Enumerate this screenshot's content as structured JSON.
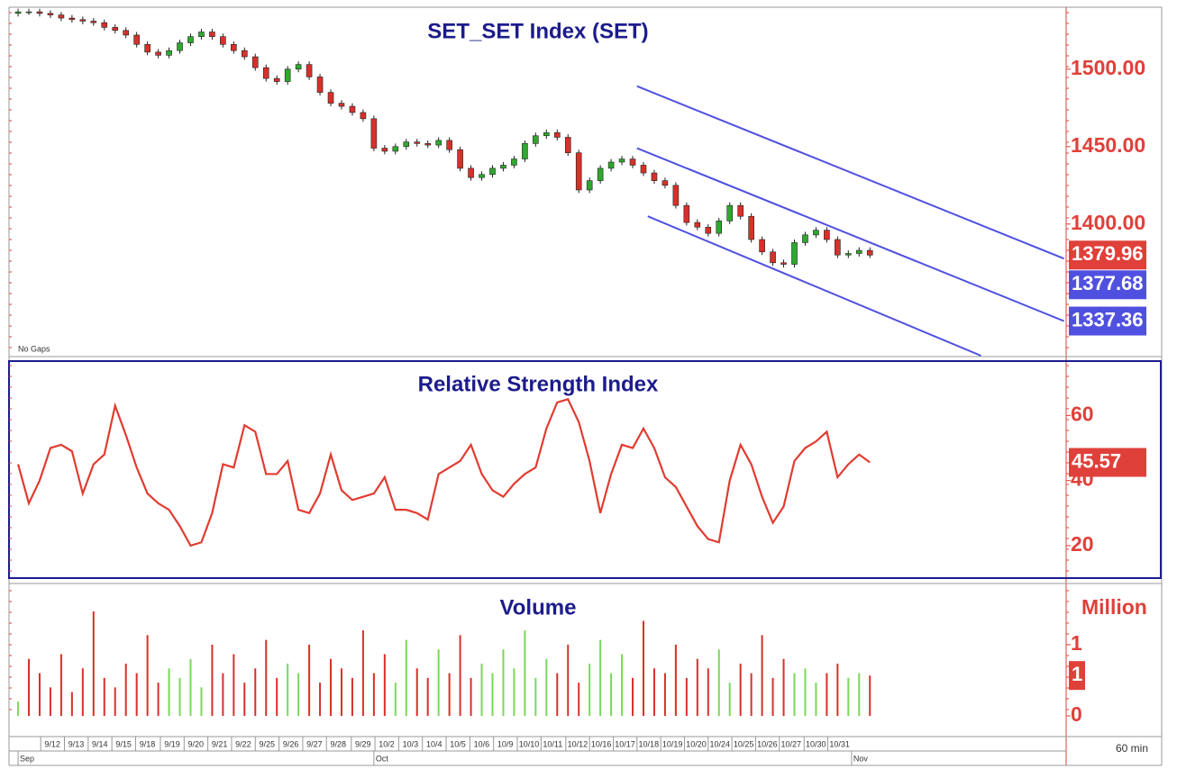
{
  "chart_data": [
    {
      "type": "candlestick",
      "title": "SET_SET  Index  (SET)",
      "note": "No Gaps",
      "open": [
        1536,
        1537,
        1537,
        1536,
        1535,
        1533,
        1532,
        1531,
        1530,
        1527,
        1525,
        1522,
        1516,
        1511,
        1509,
        1512,
        1517,
        1521,
        1524,
        1521,
        1516,
        1512,
        1508,
        1501,
        1494,
        1492,
        1500,
        1503,
        1495,
        1485,
        1478,
        1476,
        1472,
        1468,
        1449,
        1447,
        1450,
        1453,
        1452,
        1451,
        1454,
        1448,
        1436,
        1430,
        1432,
        1436,
        1438,
        1442,
        1452,
        1457,
        1459,
        1456,
        1446,
        1422,
        1428,
        1436,
        1440,
        1442,
        1438,
        1433,
        1428,
        1425,
        1412,
        1401,
        1398,
        1394,
        1402,
        1412,
        1405,
        1390,
        1382,
        1375,
        1374,
        1388,
        1393,
        1396,
        1390,
        1380,
        1381,
        1383
      ],
      "high": [
        1539,
        1539,
        1539,
        1538,
        1537,
        1535,
        1534,
        1533,
        1532,
        1529,
        1527,
        1524,
        1518,
        1513,
        1514,
        1519,
        1523,
        1526,
        1526,
        1523,
        1518,
        1514,
        1510,
        1503,
        1496,
        1502,
        1505,
        1505,
        1497,
        1487,
        1480,
        1478,
        1474,
        1470,
        1451,
        1452,
        1455,
        1455,
        1454,
        1456,
        1456,
        1450,
        1438,
        1434,
        1438,
        1440,
        1444,
        1454,
        1459,
        1461,
        1461,
        1458,
        1448,
        1430,
        1438,
        1442,
        1444,
        1444,
        1440,
        1435,
        1430,
        1427,
        1414,
        1403,
        1400,
        1404,
        1414,
        1414,
        1407,
        1392,
        1384,
        1377,
        1390,
        1395,
        1398,
        1398,
        1392,
        1383,
        1385,
        1385
      ],
      "low": [
        1534,
        1535,
        1534,
        1533,
        1531,
        1530,
        1529,
        1528,
        1525,
        1523,
        1520,
        1514,
        1509,
        1507,
        1507,
        1510,
        1515,
        1519,
        1519,
        1514,
        1510,
        1506,
        1499,
        1492,
        1490,
        1490,
        1498,
        1493,
        1483,
        1476,
        1474,
        1470,
        1466,
        1447,
        1445,
        1445,
        1448,
        1450,
        1449,
        1449,
        1446,
        1434,
        1428,
        1428,
        1430,
        1434,
        1436,
        1440,
        1450,
        1455,
        1454,
        1444,
        1420,
        1420,
        1426,
        1434,
        1438,
        1436,
        1431,
        1426,
        1423,
        1410,
        1399,
        1396,
        1392,
        1392,
        1400,
        1403,
        1388,
        1380,
        1373,
        1372,
        1372,
        1386,
        1391,
        1388,
        1378,
        1378,
        1379,
        1378
      ],
      "close": [
        1537,
        1537,
        1536,
        1535,
        1533,
        1532,
        1531,
        1530,
        1527,
        1525,
        1522,
        1516,
        1511,
        1509,
        1512,
        1517,
        1521,
        1524,
        1521,
        1516,
        1512,
        1508,
        1501,
        1494,
        1492,
        1500,
        1503,
        1495,
        1485,
        1478,
        1476,
        1472,
        1468,
        1449,
        1447,
        1450,
        1453,
        1452,
        1451,
        1454,
        1448,
        1436,
        1430,
        1432,
        1436,
        1438,
        1442,
        1452,
        1457,
        1459,
        1456,
        1446,
        1422,
        1428,
        1436,
        1440,
        1442,
        1438,
        1433,
        1428,
        1425,
        1412,
        1401,
        1398,
        1394,
        1402,
        1412,
        1405,
        1390,
        1382,
        1375,
        1374,
        1388,
        1393,
        1396,
        1390,
        1380,
        1381,
        1383,
        1379.96
      ],
      "up_color": "#2ea82e",
      "down_color": "#d8302a",
      "ylim": [
        1315,
        1540
      ],
      "yticks": [
        {
          "value": 1400,
          "label": "1400.00"
        },
        {
          "value": 1450,
          "label": "1450.00"
        },
        {
          "value": 1500,
          "label": "1500.00"
        }
      ],
      "lines": [
        {
          "color": "#5050e0",
          "x": [
            57.4,
            97.0
          ],
          "values": [
            1489,
            1377.68
          ]
        },
        {
          "color": "#5050e0",
          "x": [
            57.4,
            97.0
          ],
          "values": [
            1449,
            1337.36
          ]
        },
        {
          "color": "#5050e0",
          "x": [
            58.4,
            89.3
          ],
          "values": [
            1405,
            1315
          ]
        }
      ]
    },
    {
      "type": "line",
      "title": "Relative  Strength  Index",
      "color": "#e03c31",
      "values": [
        45,
        33,
        40,
        50,
        51,
        49,
        36,
        45,
        48,
        63,
        54,
        44,
        36,
        33,
        31,
        26,
        20,
        21,
        30,
        45,
        44,
        57,
        55,
        42,
        42,
        46,
        31,
        30,
        36,
        48,
        37,
        34,
        35,
        36,
        41,
        31,
        31,
        30,
        28,
        42,
        44,
        46,
        51,
        42,
        37,
        35,
        39,
        42,
        44,
        56,
        64,
        65,
        58,
        46,
        30,
        42,
        51,
        50,
        56,
        50,
        41,
        38,
        32,
        26,
        22,
        21,
        40,
        51,
        45,
        35,
        27,
        32,
        46,
        50,
        52,
        55,
        41,
        45,
        48,
        45.57
      ],
      "ylim": [
        10,
        77
      ],
      "yticks": [
        20,
        40,
        60
      ]
    },
    {
      "type": "bar",
      "title": "Volume",
      "unit_label": "Million",
      "color": "#d8302a",
      "up_color": "#7ad85a",
      "values": [
        0.3,
        1.2,
        0.9,
        0.6,
        1.3,
        0.5,
        1.0,
        2.2,
        0.8,
        0.6,
        1.1,
        0.9,
        1.7,
        0.7,
        1.0,
        0.8,
        1.2,
        0.6,
        1.5,
        0.9,
        1.3,
        0.7,
        1.0,
        1.6,
        0.8,
        1.1,
        0.9,
        1.5,
        0.7,
        1.2,
        1.0,
        0.8,
        1.8,
        0.9,
        1.3,
        0.7,
        1.6,
        1.0,
        0.8,
        1.4,
        0.9,
        1.7,
        0.8,
        1.1,
        0.9,
        1.4,
        1.0,
        1.8,
        0.8,
        1.2,
        0.9,
        1.5,
        0.7,
        1.1,
        1.6,
        0.9,
        1.3,
        0.8,
        2.0,
        1.0,
        0.9,
        1.5,
        0.8,
        1.2,
        1.0,
        1.4,
        0.7,
        1.1,
        0.9,
        1.7,
        0.8,
        1.2,
        0.9,
        1.0,
        0.7,
        0.9,
        1.1,
        0.8,
        0.9,
        0.85
      ],
      "ylim": [
        0,
        2.75
      ],
      "yticks": [
        0,
        {
          "value": 1.5,
          "label": "1"
        }
      ],
      "current": {
        "value": 0.85,
        "label": "1"
      }
    }
  ],
  "x_axis": {
    "xlim": [
      -0.84,
      97.2
    ],
    "interval": "60 min",
    "ticks": [
      {
        "value": 2.1,
        "label": "9/12"
      },
      {
        "value": 4.3,
        "label": "9/13"
      },
      {
        "value": 6.5,
        "label": "9/14"
      },
      {
        "value": 8.7,
        "label": "9/15"
      },
      {
        "value": 10.9,
        "label": "9/18"
      },
      {
        "value": 13.2,
        "label": "9/19"
      },
      {
        "value": 15.4,
        "label": "9/20"
      },
      {
        "value": 17.6,
        "label": "9/21"
      },
      {
        "value": 19.8,
        "label": "9/22"
      },
      {
        "value": 22.0,
        "label": "9/25"
      },
      {
        "value": 24.2,
        "label": "9/26"
      },
      {
        "value": 26.4,
        "label": "9/27"
      },
      {
        "value": 28.6,
        "label": "9/28"
      },
      {
        "value": 30.9,
        "label": "9/29"
      },
      {
        "value": 33.1,
        "label": "10/2"
      },
      {
        "value": 35.3,
        "label": "10/3"
      },
      {
        "value": 37.5,
        "label": "10/4"
      },
      {
        "value": 39.7,
        "label": "10/5"
      },
      {
        "value": 41.9,
        "label": "10/6"
      },
      {
        "value": 44.1,
        "label": "10/9"
      },
      {
        "value": 46.3,
        "label": "10/10"
      },
      {
        "value": 48.5,
        "label": "10/11"
      },
      {
        "value": 50.8,
        "label": "10/12"
      },
      {
        "value": 53.0,
        "label": "10/16"
      },
      {
        "value": 55.2,
        "label": "10/17"
      },
      {
        "value": 57.4,
        "label": "10/18"
      },
      {
        "value": 59.6,
        "label": "10/19"
      },
      {
        "value": 61.8,
        "label": "10/20"
      },
      {
        "value": 64.0,
        "label": "10/24"
      },
      {
        "value": 66.2,
        "label": "10/25"
      },
      {
        "value": 68.4,
        "label": "10/26"
      },
      {
        "value": 70.6,
        "label": "10/27"
      },
      {
        "value": 72.9,
        "label": "10/30"
      },
      {
        "value": 75.1,
        "label": "10/31"
      }
    ],
    "months": [
      {
        "value": 0,
        "label": "Sep"
      },
      {
        "value": 33.0,
        "label": "Oct"
      },
      {
        "value": 77.3,
        "label": "Nov"
      }
    ]
  }
}
